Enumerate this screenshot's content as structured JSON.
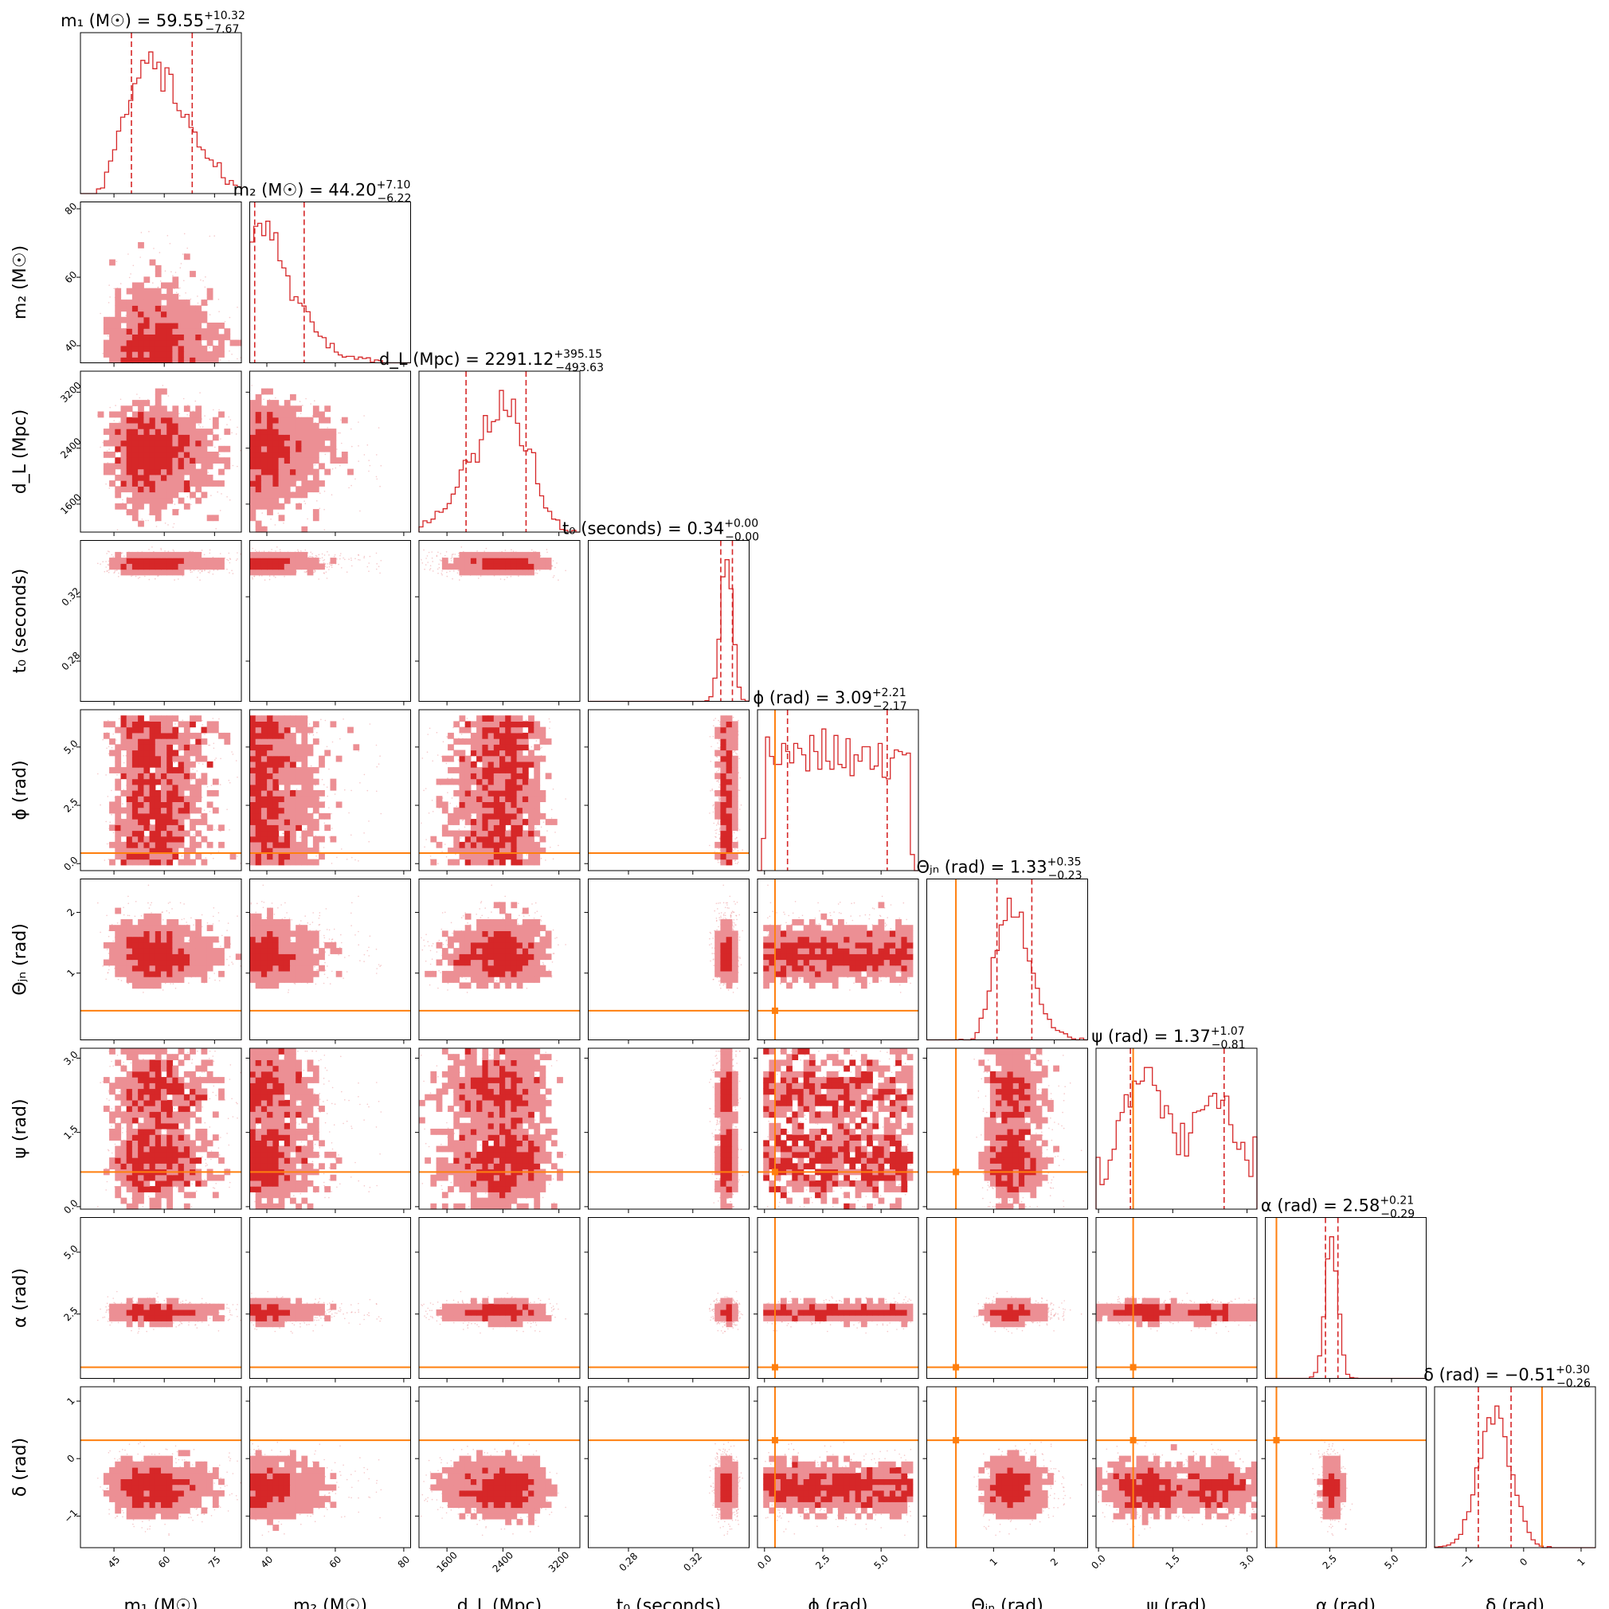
{
  "chart_data": {
    "type": "corner",
    "colors": {
      "posterior": "#d62728",
      "fill_inner": "#d62728",
      "fill_outer": "#ec8f94",
      "truth": "#ff7f0e"
    },
    "parameters": [
      {
        "key": "m1",
        "label": "m₁ (M☉)",
        "title_prefix": "m₁ (M☉) = ",
        "median": "59.55",
        "plus": "+10.32",
        "minus": "−7.67",
        "range": [
          35,
          83
        ],
        "ticks": [
          45,
          60,
          75
        ],
        "tick_labels": [
          "45",
          "60",
          "75"
        ],
        "dist": {
          "mu": 59,
          "sigma": 9,
          "skew": 0.35
        },
        "truth": null
      },
      {
        "key": "m2",
        "label": "m₂ (M☉)",
        "title_prefix": "m₂ (M☉) = ",
        "median": "44.20",
        "plus": "+7.10",
        "minus": "−6.22",
        "range": [
          35,
          82
        ],
        "ticks": [
          40,
          60,
          80
        ],
        "tick_labels": [
          "40",
          "60",
          "80"
        ],
        "dist": {
          "mu": 43.5,
          "sigma": 7,
          "skew": 0.6
        },
        "truth": null
      },
      {
        "key": "dL",
        "label": "d_L (Mpc)",
        "title_prefix": "d_L (Mpc) = ",
        "median": "2291.12",
        "plus": "+395.15",
        "minus": "−493.63",
        "range": [
          1200,
          3500
        ],
        "ticks": [
          1600,
          2400,
          3200
        ],
        "tick_labels": [
          "1600",
          "2400",
          "3200"
        ],
        "dist": {
          "mu": 2300,
          "sigma": 430,
          "skew": -0.25
        },
        "truth": null
      },
      {
        "key": "t0",
        "label": "t₀ (seconds)",
        "title_prefix": "t₀ (seconds) = ",
        "median": "0.34",
        "plus": "+0.00",
        "minus": "−0.00",
        "range": [
          0.255,
          0.355
        ],
        "ticks": [
          0.28,
          0.32
        ],
        "tick_labels": [
          "0.28",
          "0.32"
        ],
        "dist": {
          "mu": 0.341,
          "sigma": 0.0035,
          "skew": 0
        },
        "truth": null
      },
      {
        "key": "phi",
        "label": "ϕ (rad)",
        "title_prefix": "ϕ (rad) = ",
        "median": "3.09",
        "plus": "+2.21",
        "minus": "−2.17",
        "range": [
          -0.3,
          6.6
        ],
        "ticks": [
          0.0,
          2.5,
          5.0
        ],
        "tick_labels": [
          "0.0",
          "2.5",
          "5.0"
        ],
        "dist": {
          "uniform": [
            0,
            6.28
          ]
        },
        "truth": 0.45
      },
      {
        "key": "theta_jn",
        "label": "Θⱼₙ (rad)",
        "title_prefix": "Θⱼₙ (rad) = ",
        "median": "1.33",
        "plus": "+0.35",
        "minus": "−0.23",
        "range": [
          -0.1,
          2.55
        ],
        "ticks": [
          1,
          2
        ],
        "tick_labels": [
          "1",
          "2"
        ],
        "dist": {
          "mu": 1.35,
          "sigma": 0.28,
          "skew": 0.2
        },
        "truth": 0.38
      },
      {
        "key": "psi",
        "label": "ψ (rad)",
        "title_prefix": "ψ (rad) = ",
        "median": "1.37",
        "plus": "+1.07",
        "minus": "−0.81",
        "range": [
          -0.05,
          3.2
        ],
        "ticks": [
          0.0,
          1.5,
          3.0
        ],
        "tick_labels": [
          "0.0",
          "1.5",
          "3.0"
        ],
        "dist": {
          "bimodal": [
            [
              0.9,
              0.45,
              0.55
            ],
            [
              2.35,
              0.45,
              0.45
            ]
          ],
          "clip": [
            0,
            3.14
          ]
        },
        "truth": 0.7
      },
      {
        "key": "alpha",
        "label": "α (rad)",
        "title_prefix": "α (rad) = ",
        "median": "2.58",
        "plus": "+0.21",
        "minus": "−0.29",
        "range": [
          -0.1,
          6.4
        ],
        "ticks": [
          2.5,
          5.0
        ],
        "tick_labels": [
          "2.5",
          "5.0"
        ],
        "dist": {
          "mu": 2.58,
          "sigma": 0.25,
          "skew": 0
        },
        "truth": 0.35
      },
      {
        "key": "delta",
        "label": "δ (rad)",
        "title_prefix": "δ (rad) = ",
        "median": "−0.51",
        "plus": "+0.30",
        "minus": "−0.26",
        "range": [
          -1.55,
          1.25
        ],
        "ticks": [
          -1,
          0,
          1
        ],
        "tick_labels": [
          "−1",
          "0",
          "1"
        ],
        "dist": {
          "mu": -0.51,
          "sigma": 0.28,
          "skew": 0
        },
        "truth": 0.32
      }
    ]
  }
}
